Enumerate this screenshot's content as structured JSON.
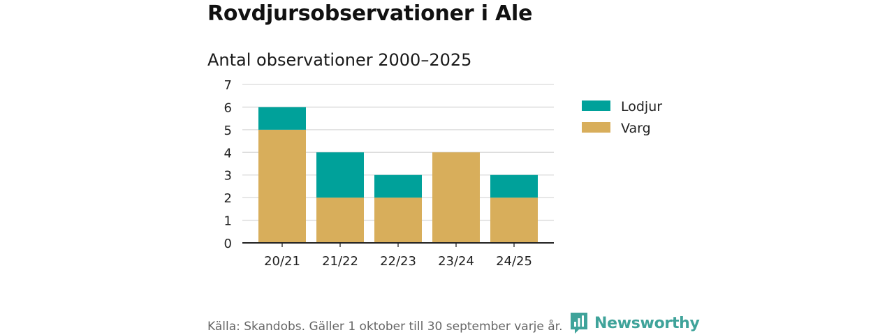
{
  "title": "Rovdjursobservationer i Ale",
  "subtitle": "Antal observationer 2000–2025",
  "footer": "Källa: Skandobs. Gäller 1 oktober till 30 september varje år.",
  "brand": {
    "name": "Newsworthy",
    "icon": "newsworthy-logo-icon",
    "color": "#3fa39a"
  },
  "chart_data": {
    "type": "bar",
    "stacked": true,
    "categories": [
      "20/21",
      "21/22",
      "22/23",
      "23/24",
      "24/25"
    ],
    "series": [
      {
        "name": "Varg",
        "color": "#d8ae5b",
        "values": [
          5,
          2,
          2,
          4,
          2
        ]
      },
      {
        "name": "Lodjur",
        "color": "#00a19a",
        "values": [
          1,
          2,
          1,
          0,
          1
        ]
      }
    ],
    "legend_order": [
      "Lodjur",
      "Varg"
    ],
    "legend_position": "right",
    "ylim": [
      0,
      7
    ],
    "yticks": [
      0,
      1,
      2,
      3,
      4,
      5,
      6,
      7
    ],
    "grid": true,
    "xlabel": "",
    "ylabel": ""
  }
}
